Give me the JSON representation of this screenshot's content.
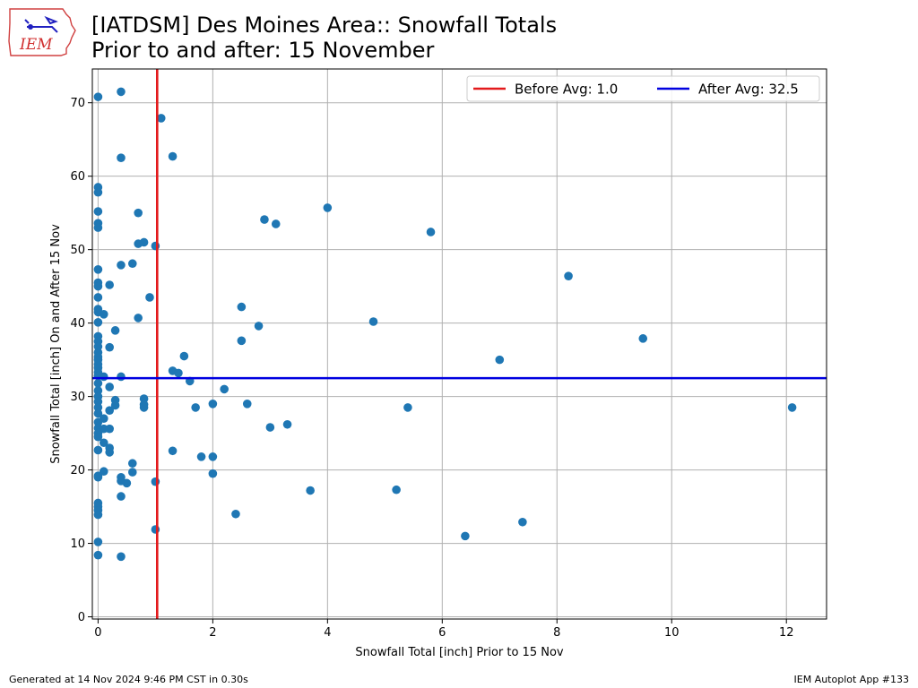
{
  "header": {
    "logo_text": "IEM",
    "title_line1": "[IATDSM] Des Moines Area:: Snowfall Totals",
    "title_line2": "Prior to and after: 15 November"
  },
  "footer": {
    "left": "Generated at 14 Nov 2024 9:46 PM CST in 0.30s",
    "right": "IEM Autoplot App #133"
  },
  "colors": {
    "points": "#1f77b4",
    "before_line": "#e31a1c",
    "after_line": "#0000e0",
    "grid": "#b0b0b0"
  },
  "chart_data": {
    "type": "scatter",
    "xlabel": "Snowfall Total [inch] Prior to 15 Nov",
    "ylabel": "Snowfall Total [inch] On and After 15 Nov",
    "xlim": [
      -0.1,
      12.7
    ],
    "ylim": [
      -0.3,
      74.6
    ],
    "xticks": [
      0,
      2,
      4,
      6,
      8,
      10,
      12
    ],
    "yticks": [
      0,
      10,
      20,
      30,
      40,
      50,
      60,
      70
    ],
    "grid": true,
    "legend_position": "top-right",
    "legend": [
      {
        "label": "Before Avg: 1.0",
        "color": "#e31a1c"
      },
      {
        "label": "After Avg: 32.5",
        "color": "#0000e0"
      }
    ],
    "reference_lines": {
      "before_avg_x": 1.03,
      "after_avg_y": 32.5
    },
    "points": [
      [
        0.0,
        70.8
      ],
      [
        0.4,
        71.5
      ],
      [
        1.1,
        67.9
      ],
      [
        0.4,
        62.5
      ],
      [
        1.3,
        62.7
      ],
      [
        0.0,
        58.5
      ],
      [
        0.0,
        57.8
      ],
      [
        0.0,
        55.2
      ],
      [
        0.7,
        55.0
      ],
      [
        0.0,
        53.6
      ],
      [
        0.0,
        53.0
      ],
      [
        0.7,
        50.8
      ],
      [
        0.8,
        51.0
      ],
      [
        1.0,
        50.5
      ],
      [
        0.6,
        48.1
      ],
      [
        0.4,
        47.9
      ],
      [
        0.0,
        47.3
      ],
      [
        0.0,
        45.5
      ],
      [
        0.0,
        45.0
      ],
      [
        0.2,
        45.2
      ],
      [
        0.0,
        43.5
      ],
      [
        0.9,
        43.5
      ],
      [
        0.0,
        41.9
      ],
      [
        0.0,
        41.5
      ],
      [
        0.1,
        41.2
      ],
      [
        0.7,
        40.7
      ],
      [
        0.0,
        40.1
      ],
      [
        0.3,
        39.0
      ],
      [
        0.0,
        38.2
      ],
      [
        0.0,
        37.5
      ],
      [
        0.0,
        36.8
      ],
      [
        0.2,
        36.7
      ],
      [
        0.0,
        36.0
      ],
      [
        0.0,
        35.4
      ],
      [
        0.0,
        35.0
      ],
      [
        0.0,
        34.4
      ],
      [
        0.0,
        33.9
      ],
      [
        0.0,
        33.3
      ],
      [
        0.0,
        32.8
      ],
      [
        0.1,
        32.7
      ],
      [
        0.4,
        32.7
      ],
      [
        0.0,
        31.8
      ],
      [
        0.2,
        31.3
      ],
      [
        0.0,
        30.8
      ],
      [
        0.0,
        30.0
      ],
      [
        0.3,
        29.5
      ],
      [
        0.8,
        29.7
      ],
      [
        0.0,
        29.3
      ],
      [
        0.3,
        28.8
      ],
      [
        0.8,
        28.9
      ],
      [
        0.8,
        28.5
      ],
      [
        0.0,
        28.5
      ],
      [
        0.2,
        28.1
      ],
      [
        0.0,
        27.7
      ],
      [
        0.1,
        27.0
      ],
      [
        0.0,
        26.5
      ],
      [
        0.0,
        25.7
      ],
      [
        0.1,
        25.6
      ],
      [
        0.2,
        25.6
      ],
      [
        0.0,
        25.0
      ],
      [
        0.0,
        24.5
      ],
      [
        0.1,
        23.7
      ],
      [
        0.2,
        23.0
      ],
      [
        0.0,
        22.7
      ],
      [
        0.2,
        22.4
      ],
      [
        0.6,
        20.9
      ],
      [
        0.1,
        19.8
      ],
      [
        0.6,
        19.7
      ],
      [
        0.0,
        19.2
      ],
      [
        0.0,
        19.0
      ],
      [
        0.4,
        19.0
      ],
      [
        0.4,
        18.5
      ],
      [
        0.5,
        18.2
      ],
      [
        1.0,
        18.4
      ],
      [
        0.4,
        16.4
      ],
      [
        0.0,
        15.5
      ],
      [
        0.0,
        15.0
      ],
      [
        0.0,
        14.5
      ],
      [
        0.0,
        13.9
      ],
      [
        1.0,
        11.9
      ],
      [
        0.0,
        10.2
      ],
      [
        0.0,
        8.4
      ],
      [
        0.4,
        8.2
      ],
      [
        1.3,
        33.5
      ],
      [
        1.4,
        33.2
      ],
      [
        1.5,
        35.5
      ],
      [
        1.6,
        32.1
      ],
      [
        1.7,
        28.5
      ],
      [
        1.3,
        22.6
      ],
      [
        1.8,
        21.8
      ],
      [
        2.0,
        21.8
      ],
      [
        2.0,
        29.0
      ],
      [
        2.0,
        19.5
      ],
      [
        2.2,
        31.0
      ],
      [
        2.4,
        14.0
      ],
      [
        2.5,
        42.2
      ],
      [
        2.5,
        37.6
      ],
      [
        2.6,
        29.0
      ],
      [
        2.8,
        39.6
      ],
      [
        2.9,
        54.1
      ],
      [
        3.0,
        25.8
      ],
      [
        3.1,
        53.5
      ],
      [
        3.3,
        26.2
      ],
      [
        3.7,
        17.2
      ],
      [
        4.0,
        55.7
      ],
      [
        4.8,
        40.2
      ],
      [
        5.2,
        17.3
      ],
      [
        5.4,
        28.5
      ],
      [
        5.8,
        52.4
      ],
      [
        6.4,
        11.0
      ],
      [
        7.0,
        35.0
      ],
      [
        7.4,
        12.9
      ],
      [
        8.2,
        46.4
      ],
      [
        9.5,
        37.9
      ],
      [
        12.1,
        28.5
      ]
    ]
  }
}
